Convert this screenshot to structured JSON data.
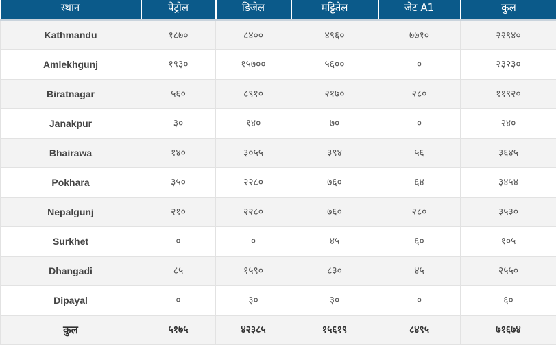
{
  "table": {
    "headers": [
      "स्थान",
      "पेट्रोल",
      "डिजेल",
      "मट्टितेल",
      "जेट A1",
      "कुल"
    ],
    "rows": [
      {
        "place": "Kathmandu",
        "petrol": "१८७०",
        "diesel": "८४००",
        "kerosene": "४९६०",
        "jet_a1": "७७१०",
        "total": "२२९४०"
      },
      {
        "place": "Amlekhgunj",
        "petrol": "१९३०",
        "diesel": "१५७००",
        "kerosene": "५६००",
        "jet_a1": "०",
        "total": "२३२३०"
      },
      {
        "place": "Biratnagar",
        "petrol": "५६०",
        "diesel": "८९१०",
        "kerosene": "२१७०",
        "jet_a1": "२८०",
        "total": "११९२०"
      },
      {
        "place": "Janakpur",
        "petrol": "३०",
        "diesel": "१४०",
        "kerosene": "७०",
        "jet_a1": "०",
        "total": "२४०"
      },
      {
        "place": "Bhairawa",
        "petrol": "१४०",
        "diesel": "३०५५",
        "kerosene": "३९४",
        "jet_a1": "५६",
        "total": "३६४५"
      },
      {
        "place": "Pokhara",
        "petrol": "३५०",
        "diesel": "२२८०",
        "kerosene": "७६०",
        "jet_a1": "६४",
        "total": "३४५४"
      },
      {
        "place": "Nepalgunj",
        "petrol": "२१०",
        "diesel": "२२८०",
        "kerosene": "७६०",
        "jet_a1": "२८०",
        "total": "३५३०"
      },
      {
        "place": "Surkhet",
        "petrol": "०",
        "diesel": "०",
        "kerosene": "४५",
        "jet_a1": "६०",
        "total": "१०५"
      },
      {
        "place": "Dhangadi",
        "petrol": "८५",
        "diesel": "१५९०",
        "kerosene": "८३०",
        "jet_a1": "४५",
        "total": "२५५०"
      },
      {
        "place": "Dipayal",
        "petrol": "०",
        "diesel": "३०",
        "kerosene": "३०",
        "jet_a1": "०",
        "total": "६०"
      }
    ],
    "total_row": {
      "place": "कुल",
      "petrol": "५१७५",
      "diesel": "४२३८५",
      "kerosene": "१५६१९",
      "jet_a1": "८४९५",
      "total": "७१६७४"
    }
  }
}
